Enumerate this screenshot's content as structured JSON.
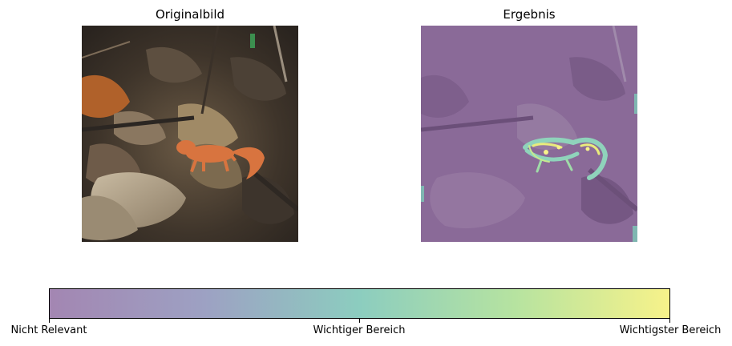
{
  "panels": {
    "left": {
      "title": "Originalbild"
    },
    "right": {
      "title": "Ergebnis"
    }
  },
  "colorbar": {
    "colormap": "viridis (alpha-blended)",
    "stops": [
      "#a386b2",
      "#9da1c3",
      "#8ccdbf",
      "#b6e3a0",
      "#f7f28a"
    ],
    "ticks": [
      {
        "label": "Nicht Relevant"
      },
      {
        "label": "Wichtiger Bereich"
      },
      {
        "label": "Wichtigster Bereich"
      }
    ]
  }
}
